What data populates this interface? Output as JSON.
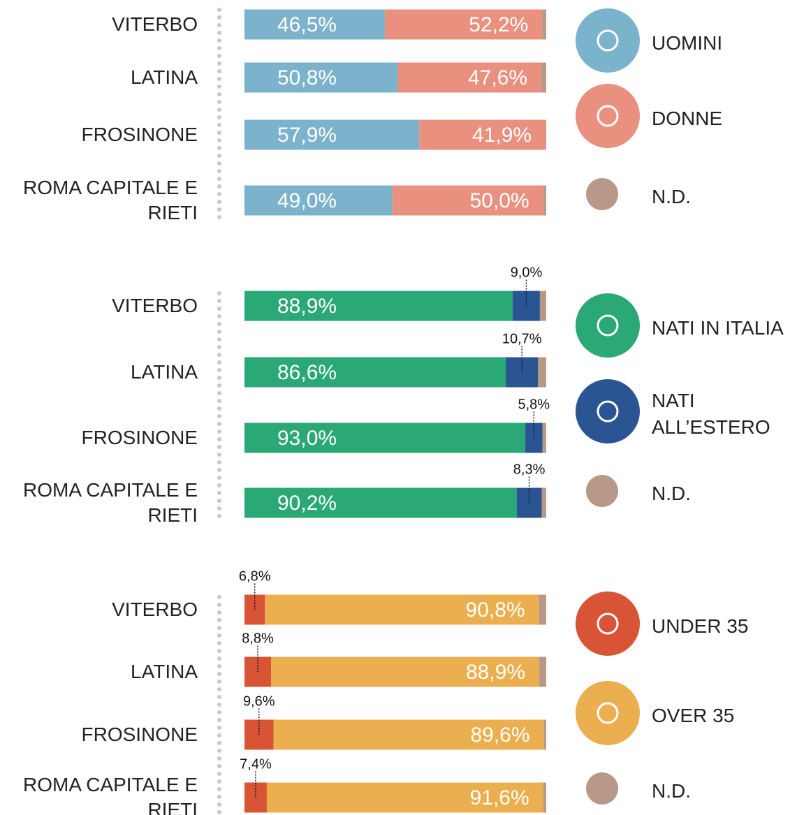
{
  "chart_data": [
    {
      "type": "bar",
      "orientation": "horizontal",
      "stacked": true,
      "xlim": [
        0,
        100
      ],
      "categories": [
        "VITERBO",
        "LATINA",
        "FROSINONE",
        "ROMA CAPITALE E RIETI"
      ],
      "series": [
        {
          "name": "UOMINI",
          "color": "#7cb3cc",
          "values": [
            46.5,
            50.8,
            57.9,
            49.0
          ],
          "value_labels": [
            "46,5%",
            "50,8%",
            "57,9%",
            "49,0%"
          ]
        },
        {
          "name": "DONNE",
          "color": "#e9907f",
          "values": [
            52.2,
            47.6,
            41.9,
            50.0
          ],
          "value_labels": [
            "52,2%",
            "47,6%",
            "41,9%",
            "50,0%"
          ]
        },
        {
          "name": "N.D.",
          "color": "#b89888",
          "values": [
            1.3,
            1.6,
            0.2,
            1.0
          ]
        }
      ]
    },
    {
      "type": "bar",
      "orientation": "horizontal",
      "stacked": true,
      "xlim": [
        0,
        100
      ],
      "categories": [
        "VITERBO",
        "LATINA",
        "FROSINONE",
        "ROMA CAPITALE E RIETI"
      ],
      "series": [
        {
          "name": "NATI IN ITALIA",
          "color": "#2aa876",
          "values": [
            88.9,
            86.6,
            93.0,
            90.2
          ],
          "value_labels": [
            "88,9%",
            "86,6%",
            "93,0%",
            "90,2%"
          ]
        },
        {
          "name": "NATI ALL’ESTERO",
          "color": "#2b5592",
          "values": [
            9.0,
            10.7,
            5.8,
            8.3
          ],
          "value_labels": [
            "9,0%",
            "10,7%",
            "5,8%",
            "8,3%"
          ]
        },
        {
          "name": "N.D.",
          "color": "#b89888",
          "values": [
            2.1,
            2.7,
            1.2,
            1.5
          ]
        }
      ]
    },
    {
      "type": "bar",
      "orientation": "horizontal",
      "stacked": true,
      "xlim": [
        0,
        100
      ],
      "categories": [
        "VITERBO",
        "LATINA",
        "FROSINONE",
        "ROMA CAPITALE E RIETI"
      ],
      "series": [
        {
          "name": "UNDER 35",
          "color": "#d95335",
          "values": [
            6.8,
            8.8,
            9.6,
            7.4
          ],
          "value_labels": [
            "6,8%",
            "8,8%",
            "9,6%",
            "7,4%"
          ]
        },
        {
          "name": "OVER 35",
          "color": "#ebaf50",
          "values": [
            90.8,
            88.9,
            89.6,
            91.6
          ],
          "value_labels": [
            "90,8%",
            "88,9%",
            "89,6%",
            "91,6%"
          ]
        },
        {
          "name": "N.D.",
          "color": "#b89888",
          "values": [
            2.4,
            2.3,
            0.8,
            1.0
          ]
        }
      ]
    }
  ]
}
